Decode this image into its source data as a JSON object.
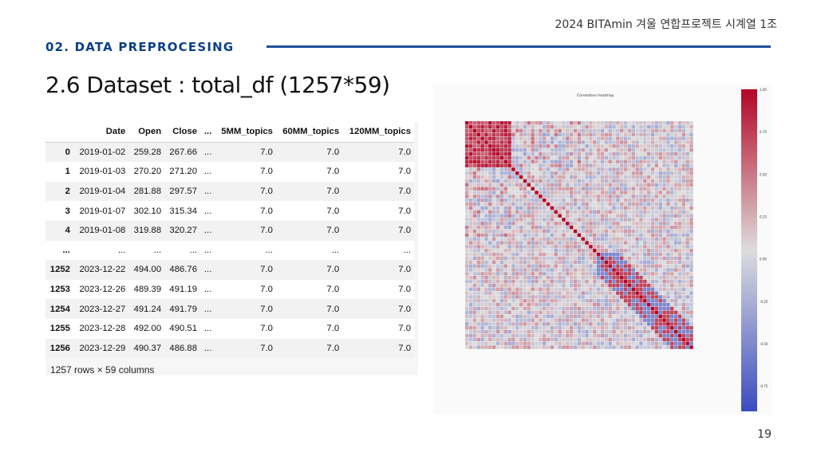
{
  "header": {
    "project_label": "2024 BITAmin 겨울 연합프로젝트 시계열 1조",
    "section_title": "02. DATA PREPROCESING",
    "slide_title": "2.6 Dataset : total_df (1257*59)"
  },
  "dataframe": {
    "columns": [
      "Date",
      "Open",
      "Close",
      "...",
      "5MM_topics",
      "60MM_topics",
      "120MM_topics"
    ],
    "rows": [
      {
        "index": "0",
        "cells": [
          "2019-01-02",
          "259.28",
          "267.66",
          "...",
          "7.0",
          "7.0",
          "7.0"
        ]
      },
      {
        "index": "1",
        "cells": [
          "2019-01-03",
          "270.20",
          "271.20",
          "...",
          "7.0",
          "7.0",
          "7.0"
        ]
      },
      {
        "index": "2",
        "cells": [
          "2019-01-04",
          "281.88",
          "297.57",
          "...",
          "7.0",
          "7.0",
          "7.0"
        ]
      },
      {
        "index": "3",
        "cells": [
          "2019-01-07",
          "302.10",
          "315.34",
          "...",
          "7.0",
          "7.0",
          "7.0"
        ]
      },
      {
        "index": "4",
        "cells": [
          "2019-01-08",
          "319.88",
          "320.27",
          "...",
          "7.0",
          "7.0",
          "7.0"
        ]
      },
      {
        "index": "...",
        "cells": [
          "...",
          "...",
          "...",
          "...",
          "...",
          "...",
          "..."
        ]
      },
      {
        "index": "1252",
        "cells": [
          "2023-12-22",
          "494.00",
          "486.76",
          "...",
          "7.0",
          "7.0",
          "7.0"
        ]
      },
      {
        "index": "1253",
        "cells": [
          "2023-12-26",
          "489.39",
          "491.19",
          "...",
          "7.0",
          "7.0",
          "7.0"
        ]
      },
      {
        "index": "1254",
        "cells": [
          "2023-12-27",
          "491.24",
          "491.79",
          "...",
          "7.0",
          "7.0",
          "7.0"
        ]
      },
      {
        "index": "1255",
        "cells": [
          "2023-12-28",
          "492.00",
          "490.51",
          "...",
          "7.0",
          "7.0",
          "7.0"
        ]
      },
      {
        "index": "1256",
        "cells": [
          "2023-12-29",
          "490.37",
          "486.88",
          "...",
          "7.0",
          "7.0",
          "7.0"
        ]
      }
    ],
    "shape_caption": "1257 rows × 59 columns"
  },
  "heatmap": {
    "title": "Correlation heatmap",
    "size": 59,
    "colorbar_ticks": [
      "1.00",
      "0.75",
      "0.50",
      "0.25",
      "0.00",
      "-0.25",
      "-0.50",
      "-0.75"
    ],
    "colors": {
      "high": "#b40426",
      "mid": "#dddddd",
      "low": "#3b4cc0"
    }
  },
  "footer": {
    "page_number": "19"
  }
}
